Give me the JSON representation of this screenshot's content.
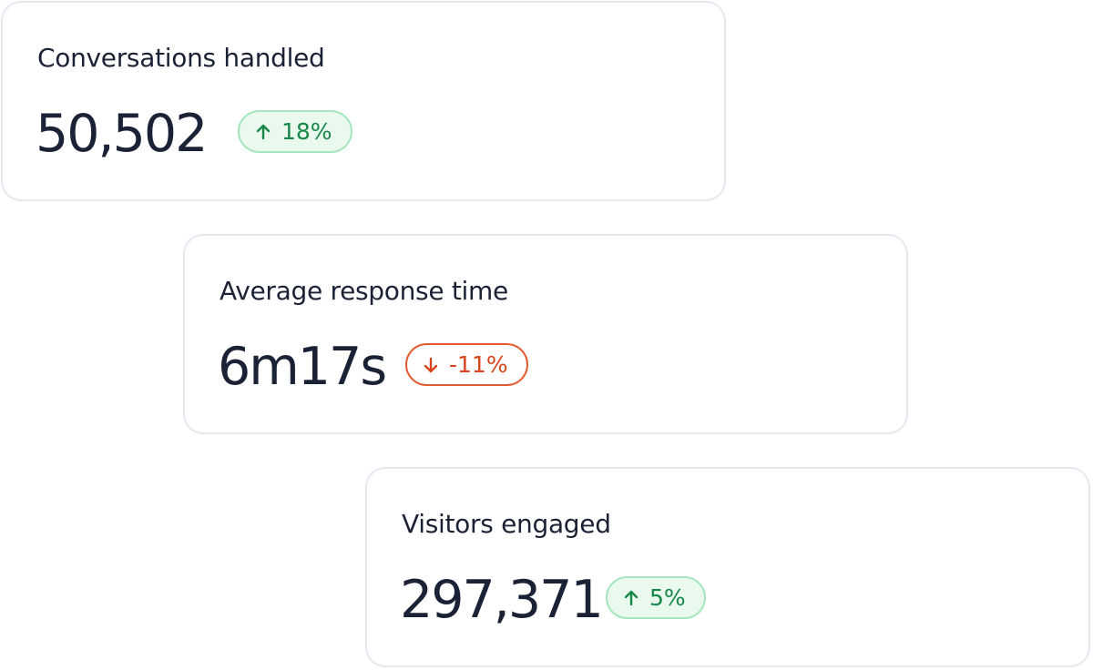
{
  "cards": [
    {
      "label": "Conversations handled",
      "value": "50,502",
      "change": "18%"
    },
    {
      "label": "Average response time",
      "value": "6m17s",
      "change": "-11%"
    },
    {
      "label": "Visitors engaged",
      "value": "297,371",
      "change": "5%"
    }
  ]
}
